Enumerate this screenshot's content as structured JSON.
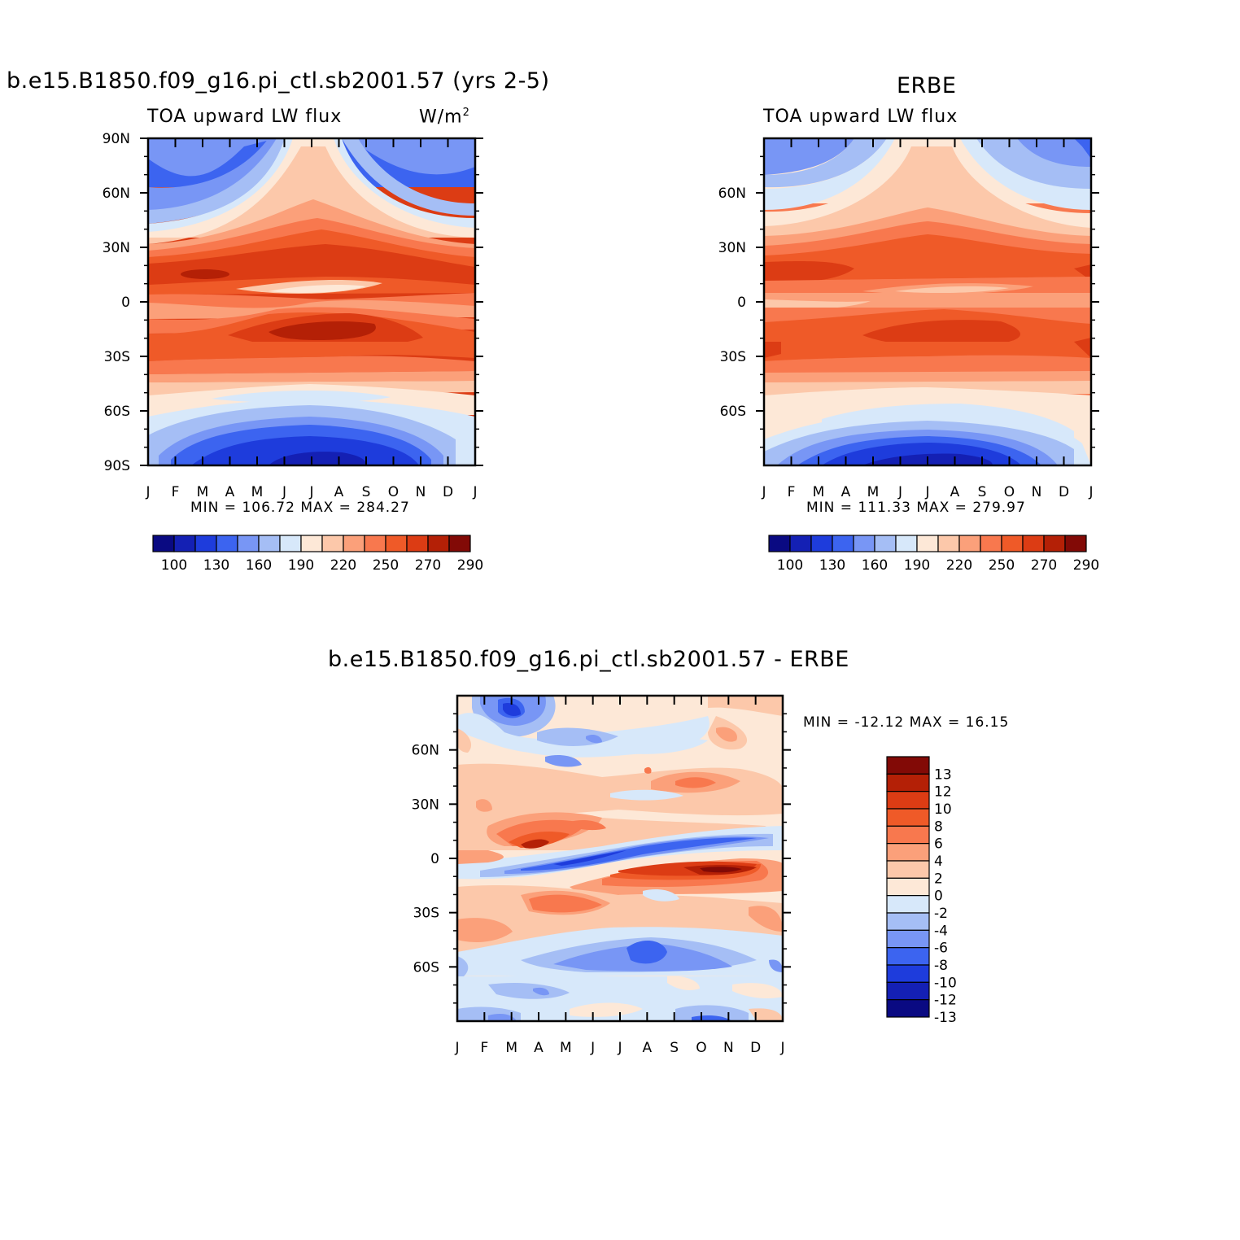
{
  "panel1": {
    "title": "b.e15.B1850.f09_g16.pi_ctl.sb2001.57 (yrs 2-5)",
    "left_label": "TOA upward LW flux",
    "right_label": "W/m",
    "right_label_sup": "2",
    "stats": "MIN = 106.72  MAX = 284.27"
  },
  "panel2": {
    "title": "ERBE",
    "left_label": "TOA upward LW flux",
    "stats": "MIN = 111.33  MAX = 279.97"
  },
  "panel3": {
    "title": "b.e15.B1850.f09_g16.pi_ctl.sb2001.57 - ERBE",
    "stats": "MIN = -12.12  MAX =   16.15"
  },
  "colorbar_top": {
    "labels": [
      "100",
      "130",
      "160",
      "190",
      "220",
      "250",
      "270",
      "290"
    ],
    "colors": [
      "#0a0a82",
      "#1420b4",
      "#1e3cdc",
      "#3c64f0",
      "#7896f5",
      "#a5bef5",
      "#d7e8fa",
      "#fde8d7",
      "#fcc8aa",
      "#fba07a",
      "#f8784e",
      "#ef5a28",
      "#dc3c14",
      "#b42006",
      "#820a06"
    ]
  },
  "colorbar_diff": {
    "labels": [
      "13",
      "12",
      "10",
      "8",
      "6",
      "4",
      "2",
      "0",
      "-2",
      "-4",
      "-6",
      "-8",
      "-10",
      "-12",
      "-13"
    ],
    "colors": [
      "#820a06",
      "#b42006",
      "#dc3c14",
      "#ef5a28",
      "#f8784e",
      "#fba07a",
      "#fcc8aa",
      "#fde8d7",
      "#d7e8fa",
      "#a5bef5",
      "#7896f5",
      "#3c64f0",
      "#1e3cdc",
      "#1420b4",
      "#0a0a82"
    ]
  },
  "chart_data": [
    {
      "type": "heatmap",
      "title": "b.e15.B1850.f09_g16.pi_ctl.sb2001.57 (yrs 2-5)",
      "variable": "TOA upward LW flux",
      "units": "W/m2",
      "x_ticks": [
        "J",
        "F",
        "M",
        "A",
        "M",
        "J",
        "J",
        "A",
        "S",
        "O",
        "N",
        "D",
        "J"
      ],
      "y_ticks": [
        "90N",
        "60N",
        "30N",
        "0",
        "30S",
        "60S",
        "90S"
      ],
      "ylim": [
        -90,
        90
      ],
      "min": 106.72,
      "max": 284.27
    },
    {
      "type": "heatmap",
      "title": "ERBE",
      "variable": "TOA upward LW flux",
      "x_ticks": [
        "J",
        "F",
        "M",
        "A",
        "M",
        "J",
        "J",
        "A",
        "S",
        "O",
        "N",
        "D",
        "J"
      ],
      "y_ticks": [
        "60N",
        "30N",
        "0",
        "30S",
        "60S"
      ],
      "ylim": [
        -90,
        90
      ],
      "min": 111.33,
      "max": 279.97
    },
    {
      "type": "heatmap",
      "title": "b.e15.B1850.f09_g16.pi_ctl.sb2001.57 - ERBE",
      "x_ticks": [
        "J",
        "F",
        "M",
        "A",
        "M",
        "J",
        "J",
        "A",
        "S",
        "O",
        "N",
        "D",
        "J"
      ],
      "y_ticks": [
        "60N",
        "30N",
        "0",
        "30S",
        "60S"
      ],
      "ylim": [
        -90,
        90
      ],
      "min": -12.12,
      "max": 16.15
    }
  ]
}
